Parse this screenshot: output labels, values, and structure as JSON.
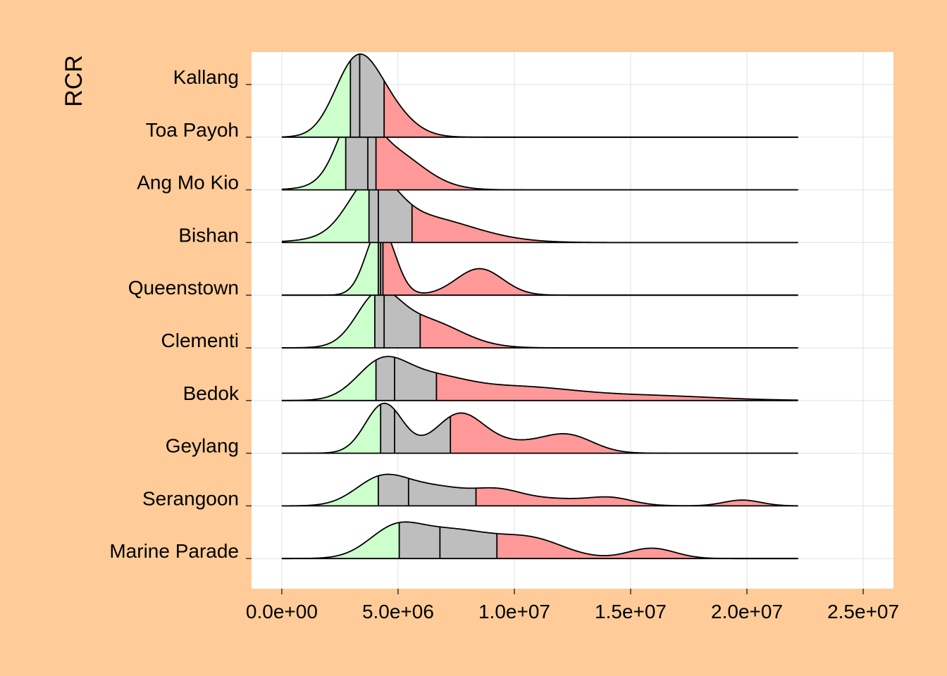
{
  "chart_data": {
    "type": "ridgeline",
    "title": "",
    "xlabel": "",
    "ylabel": "RCR",
    "xlim": [
      -1300000,
      26300000
    ],
    "x_ticks": [
      0,
      5000000,
      10000000,
      15000000,
      20000000,
      25000000
    ],
    "x_tick_labels": [
      "0.0e+00",
      "5.0e+06",
      "1.0e+07",
      "1.5e+07",
      "2.0e+07",
      "2.5e+07"
    ],
    "grid": true,
    "x_range": [
      0,
      22200000
    ],
    "quantile_colors": {
      "low": "#CCFFCC",
      "mid": "#BEBEBE",
      "high": "#FF9999"
    },
    "panel_color": "#FFFFFF",
    "background_color": "#FFCC99",
    "series": [
      {
        "name": "Kallang",
        "quantiles": [
          2950000,
          3350000,
          4400000
        ],
        "components": [
          [
            0.58,
            3100000,
            900000
          ],
          [
            0.42,
            4100000,
            1150000
          ]
        ],
        "peak": 1.0
      },
      {
        "name": "Toa Payoh",
        "quantiles": [
          2750000,
          3700000,
          4050000
        ],
        "components": [
          [
            0.55,
            3150000,
            750000
          ],
          [
            0.45,
            4400000,
            1500000
          ]
        ],
        "peak": 1.0
      },
      {
        "name": "Ang Mo Kio",
        "quantiles": [
          3750000,
          4150000,
          5600000
        ],
        "components": [
          [
            0.65,
            3900000,
            1000000
          ],
          [
            0.35,
            5800000,
            2300000
          ]
        ],
        "peak": 0.82
      },
      {
        "name": "Bishan",
        "quantiles": [
          4150000,
          4250000,
          4350000
        ],
        "components": [
          [
            0.72,
            4250000,
            620000
          ],
          [
            0.28,
            8500000,
            1000000
          ]
        ],
        "peak": 0.82
      },
      {
        "name": "Queenstown",
        "quantiles": [
          4000000,
          4400000,
          5950000
        ],
        "components": [
          [
            0.6,
            4100000,
            900000
          ],
          [
            0.4,
            6000000,
            1600000
          ]
        ],
        "peak": 0.7
      },
      {
        "name": "Clementi",
        "quantiles": [
          4050000,
          4850000,
          6650000
        ],
        "components": [
          [
            0.45,
            4250000,
            1050000
          ],
          [
            0.3,
            6200000,
            1600000
          ],
          [
            0.18,
            10000000,
            2400000
          ],
          [
            0.07,
            15500000,
            3000000
          ]
        ],
        "peak": 0.53
      },
      {
        "name": "Bedok",
        "quantiles": [
          4250000,
          4850000,
          7250000
        ],
        "components": [
          [
            0.45,
            4400000,
            800000
          ],
          [
            0.3,
            7600000,
            1000000
          ],
          [
            0.15,
            12300000,
            1100000
          ],
          [
            0.1,
            9300000,
            1800000
          ]
        ],
        "peak": 0.6
      },
      {
        "name": "Geylang",
        "quantiles": [
          4150000,
          5450000,
          8350000
        ],
        "components": [
          [
            0.35,
            4250000,
            1100000
          ],
          [
            0.25,
            6600000,
            1500000
          ],
          [
            0.14,
            9300000,
            1000000
          ],
          [
            0.08,
            14200000,
            900000
          ],
          [
            0.08,
            19800000,
            800000
          ],
          [
            0.1,
            11500000,
            2000000
          ]
        ],
        "peak": 0.38
      },
      {
        "name": "Serangoon",
        "quantiles": [
          5050000,
          6800000,
          9250000
        ],
        "components": [
          [
            0.3,
            4800000,
            1100000
          ],
          [
            0.35,
            7300000,
            1800000
          ],
          [
            0.22,
            10800000,
            1400000
          ],
          [
            0.13,
            15900000,
            1000000
          ]
        ],
        "peak": 0.44
      },
      {
        "name": "Marine Parade",
        "quantiles": [],
        "components": [],
        "peak": 0
      }
    ]
  }
}
